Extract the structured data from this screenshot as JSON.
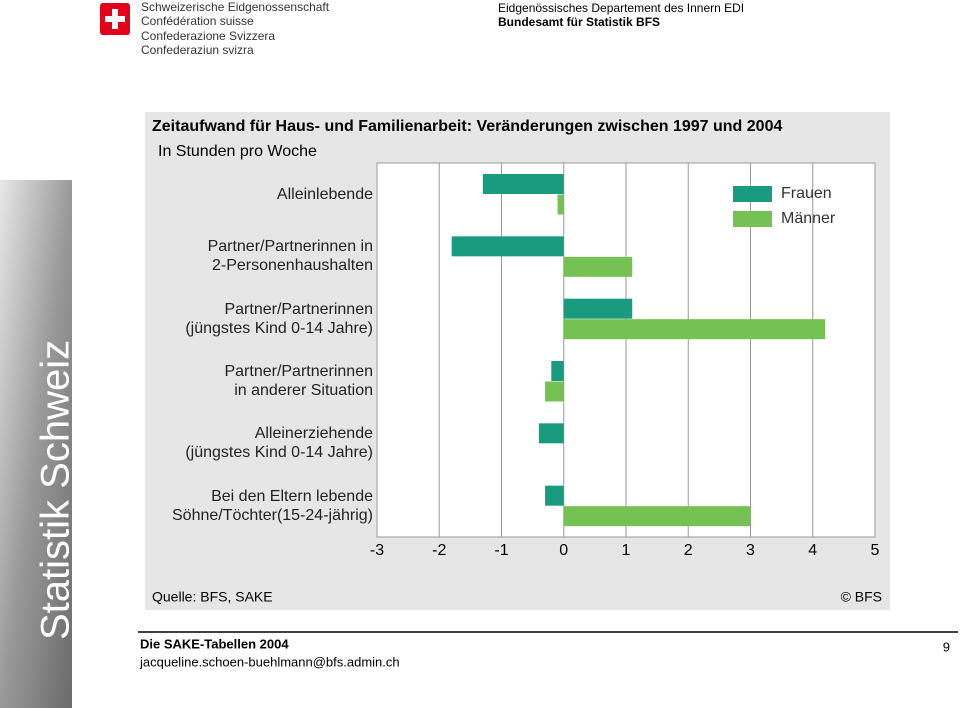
{
  "header": {
    "lines": [
      "Schweizerische Eidgenossenschaft",
      "Confédération suisse",
      "Confederazione Svizzera",
      "Confederaziun svizra"
    ],
    "department": "Eidgenössisches Departement des Innern EDI",
    "office": "Bundesamt für Statistik BFS"
  },
  "sidebar": "Statistik Schweiz",
  "chart_data": {
    "type": "hbar",
    "title": "Zeitaufwand für Haus- und Familienarbeit: Veränderungen zwischen 1997 und 2004",
    "subtitle": "In Stunden pro Woche",
    "categories": [
      "Alleinlebende",
      "Partner/Partnerinnen in\n2-Personenhaushalten",
      "Partner/Partnerinnen\n(jüngstes Kind 0-14 Jahre)",
      "Partner/Partnerinnen\nin anderer Situation",
      "Alleinerziehende\n(jüngstes Kind 0-14 Jahre)",
      "Bei den Eltern lebende\nSöhne/Töchter(15-24-jährig)"
    ],
    "series": [
      {
        "name": "Frauen",
        "color": "#1a9b80",
        "values": [
          -1.3,
          -1.8,
          1.1,
          -0.2,
          -0.4,
          -0.3
        ]
      },
      {
        "name": "Männer",
        "color": "#76c154",
        "values": [
          -0.1,
          1.1,
          4.2,
          -0.3,
          0,
          3.0
        ]
      }
    ],
    "xlim": [
      -3,
      5
    ],
    "xticks": [
      -3,
      -2,
      -1,
      0,
      1,
      2,
      3,
      4,
      5
    ],
    "grid": true,
    "legend": "top-right",
    "source": "Quelle: BFS, SAKE",
    "credit": "© BFS"
  },
  "footer": {
    "title": "Die SAKE-Tabellen 2004",
    "email": "jacqueline.schoen-buehlmann@bfs.admin.ch",
    "page": "9"
  }
}
